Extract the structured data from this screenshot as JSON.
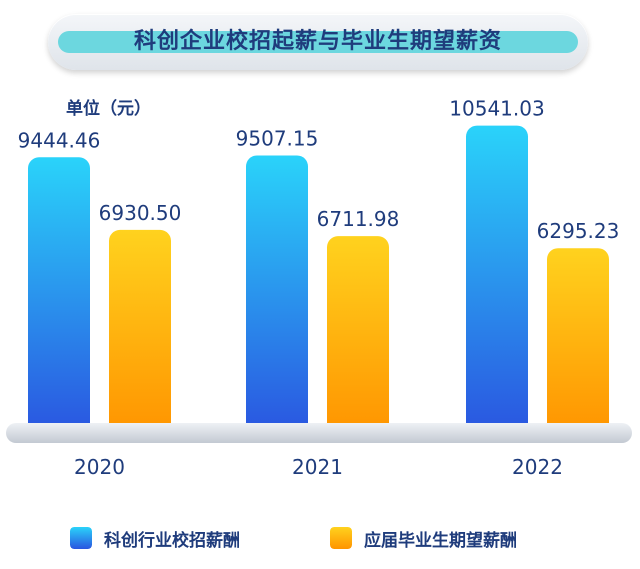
{
  "title": "科创企业校招起薪与毕业生期望薪资",
  "unit_label": "单位（元）",
  "chart_data": {
    "type": "bar",
    "categories": [
      "2020",
      "2021",
      "2022"
    ],
    "series": [
      {
        "name": "科创行业校招薪酬",
        "values": [
          9444.46,
          9507.15,
          10541.03
        ],
        "color": "#1e90f5"
      },
      {
        "name": "应届毕业生期望薪酬",
        "values": [
          6930.5,
          6711.98,
          6295.23
        ],
        "color": "#ffa500"
      }
    ],
    "data_labels": [
      [
        "9444.46",
        "9507.15",
        "10541.03"
      ],
      [
        "6930.50",
        "6711.98",
        "6295.23"
      ]
    ],
    "ylim": [
      0,
      11600
    ],
    "grid": false,
    "legend": "bottom"
  }
}
